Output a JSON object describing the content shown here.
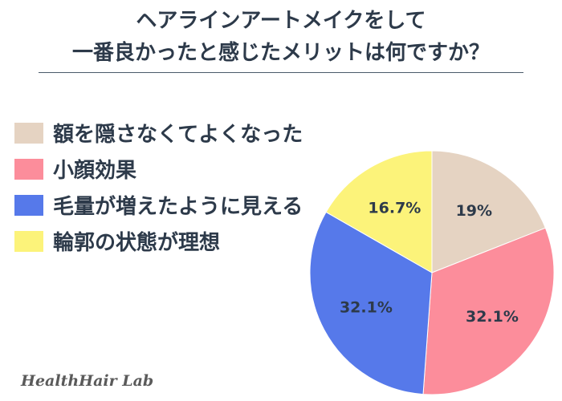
{
  "chart_data": {
    "type": "pie",
    "title_lines": [
      "ヘアラインアートメイクをして",
      "一番良かったと感じたメリットは何ですか？"
    ],
    "slices": [
      {
        "label": "額を隠さなくてよくなった",
        "value": 19,
        "display": "19%",
        "color": "#e5d3c2"
      },
      {
        "label": "小顔効果",
        "value": 32.1,
        "display": "32.1%",
        "color": "#fc8d9b"
      },
      {
        "label": "毛量が増えたように見える",
        "value": 32.1,
        "display": "32.1%",
        "color": "#5679ea"
      },
      {
        "label": "輪郭の状態が理想",
        "value": 16.7,
        "display": "16.7%",
        "color": "#fcf37a"
      }
    ],
    "start_angle": "12 o'clock",
    "direction": "clockwise",
    "legend_position": "top-left"
  },
  "footer": {
    "brand": "HealthHair Lab"
  }
}
